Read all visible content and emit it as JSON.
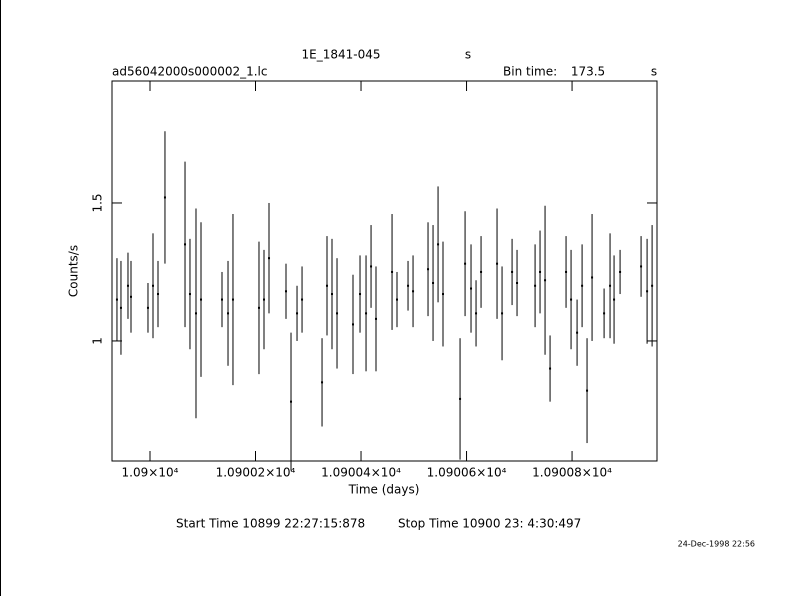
{
  "chart_data": {
    "type": "errorbar",
    "title": "1E_1841-045",
    "title_unit": "s",
    "file_name": "ad56042000s000002_1.lc",
    "bin_time_label": "Bin time:",
    "bin_time": 173.5,
    "bin_time_unit": "s",
    "x_label": "Time (days)",
    "y_label": "Counts/s",
    "start_time": "Start Time 10899 22:27:15:878",
    "stop_time": "Stop Time 10900 23: 4:30:497",
    "footer_date": "24-Dec-1998 22:56",
    "color": "#000000",
    "xlim": [
      10899.9928,
      10900.0961
    ],
    "ylim": [
      0.565,
      1.942
    ],
    "xticks": [
      {
        "value": 10900,
        "label": "1.09×10⁴"
      },
      {
        "value": 10900.02,
        "label": "1.09002×10⁴"
      },
      {
        "value": 10900.04,
        "label": "1.09004×10⁴"
      },
      {
        "value": 10900.06,
        "label": "1.09006×10⁴"
      },
      {
        "value": 10900.08,
        "label": "1.09008×10⁴"
      }
    ],
    "yticks": [
      1,
      1.5
    ],
    "x": [
      10899.99374,
      10899.9945,
      10899.99583,
      10899.9964,
      10899.99962,
      10900.00057,
      10900.00152,
      10900.00284,
      10900.00664,
      10900.00758,
      10900.00872,
      10900.00967,
      10900.01365,
      10900.01479,
      10900.01573,
      10900.02066,
      10900.02161,
      10900.02256,
      10900.02578,
      10900.02673,
      10900.02787,
      10900.02882,
      10900.03261,
      10900.03355,
      10900.0345,
      10900.03545,
      10900.03848,
      10900.03981,
      10900.04095,
      10900.0419,
      10900.04284,
      10900.04588,
      10900.04682,
      10900.04891,
      10900.04986,
      10900.0527,
      10900.05365,
      10900.0546,
      10900.05554,
      10900.05877,
      10900.05972,
      10900.06085,
      10900.0618,
      10900.06275,
      10900.06578,
      10900.06673,
      10900.06863,
      10900.06957,
      10900.07299,
      10900.07393,
      10900.07488,
      10900.07583,
      10900.07886,
      10900.07981,
      10900.08095,
      10900.0819,
      10900.08284,
      10900.08379,
      10900.08607,
      10900.0872,
      10900.08796,
      10900.0891,
      10900.09308,
      10900.09422,
      10900.09517
    ],
    "values": [
      1.15,
      1.12,
      1.2,
      1.16,
      1.12,
      1.2,
      1.17,
      1.52,
      1.35,
      1.17,
      1.1,
      1.15,
      1.15,
      1.1,
      1.15,
      1.12,
      1.15,
      1.3,
      1.18,
      0.78,
      1.1,
      1.15,
      0.85,
      1.2,
      1.17,
      1.1,
      1.06,
      1.17,
      1.1,
      1.27,
      1.08,
      1.25,
      1.15,
      1.2,
      1.18,
      1.26,
      1.21,
      1.35,
      1.17,
      0.79,
      1.28,
      1.19,
      1.1,
      1.25,
      1.28,
      1.1,
      1.25,
      1.21,
      1.2,
      1.25,
      1.22,
      0.9,
      1.25,
      1.15,
      1.03,
      1.2,
      0.82,
      1.23,
      1.1,
      1.2,
      1.15,
      1.25,
      1.27,
      1.18,
      1.2
    ],
    "errors": [
      0.15,
      0.17,
      0.12,
      0.13,
      0.09,
      0.19,
      0.12,
      0.24,
      0.3,
      0.2,
      0.38,
      0.28,
      0.1,
      0.19,
      0.31,
      0.24,
      0.18,
      0.2,
      0.1,
      0.25,
      0.1,
      0.12,
      0.16,
      0.18,
      0.2,
      0.2,
      0.18,
      0.14,
      0.21,
      0.15,
      0.19,
      0.21,
      0.1,
      0.09,
      0.13,
      0.17,
      0.21,
      0.21,
      0.19,
      0.22,
      0.19,
      0.16,
      0.12,
      0.13,
      0.2,
      0.17,
      0.12,
      0.12,
      0.15,
      0.15,
      0.27,
      0.12,
      0.13,
      0.18,
      0.12,
      0.15,
      0.19,
      0.23,
      0.09,
      0.19,
      0.16,
      0.08,
      0.11,
      0.19,
      0.22
    ]
  }
}
